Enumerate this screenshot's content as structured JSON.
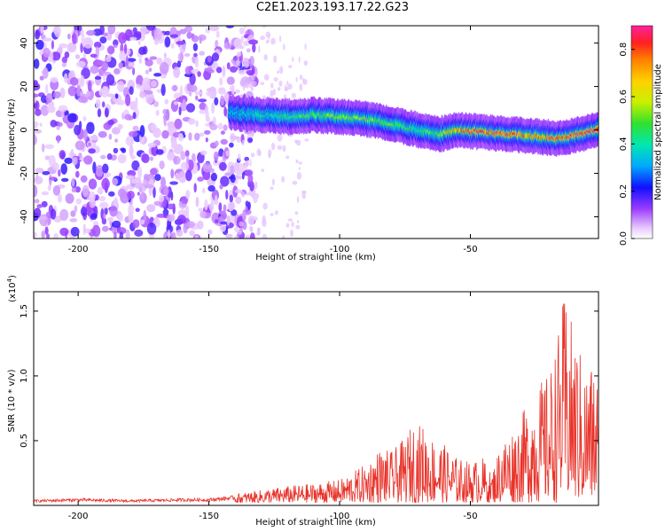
{
  "title": "C2E1.2023.193.17.22.G23",
  "chart_data": [
    {
      "type": "heatmap",
      "xlabel": "Height of straight line (km)",
      "ylabel": "Frequency (Hz)",
      "xlim": [
        -217,
        -1
      ],
      "ylim": [
        -50,
        48
      ],
      "xticks": [
        -200,
        -150,
        -100,
        -50
      ],
      "yticks": [
        -40,
        -20,
        0,
        20,
        40
      ],
      "colorbar": {
        "label": "Normalized spectral amplitude",
        "range": [
          0,
          0.9
        ],
        "ticks": [
          0.0,
          0.2,
          0.4,
          0.6,
          0.8
        ]
      },
      "noise_region_x": [
        -217,
        -140
      ],
      "ridge": {
        "x": [
          -142,
          -130,
          -120,
          -110,
          -100,
          -90,
          -80,
          -70,
          -62,
          -55,
          -45,
          -35,
          -25,
          -15,
          -5,
          -1
        ],
        "freq": [
          8,
          7,
          6,
          7,
          6,
          5,
          3,
          0,
          -2,
          0,
          -1,
          -2,
          -3,
          -4,
          -1,
          0
        ],
        "amplitude": [
          0.35,
          0.4,
          0.45,
          0.5,
          0.55,
          0.55,
          0.5,
          0.45,
          0.5,
          0.75,
          0.8,
          0.8,
          0.75,
          0.8,
          0.85,
          0.85
        ]
      }
    },
    {
      "type": "line",
      "xlabel": "Height of straight line (km)",
      "ylabel": "SNR (10 * v/v)",
      "yscale_label": "(x10",
      "yscale_exp": "4",
      "yscale_close": ")",
      "xlim": [
        -217,
        -1
      ],
      "ylim": [
        0,
        1.65
      ],
      "xticks": [
        -200,
        -150,
        -100,
        -50
      ],
      "yticks": [
        0.5,
        1.0,
        1.5
      ],
      "series": [
        {
          "color": "#e8332a",
          "envelope_x": [
            -217,
            -200,
            -180,
            -160,
            -150,
            -140,
            -130,
            -120,
            -110,
            -100,
            -90,
            -85,
            -80,
            -75,
            -72,
            -68,
            -65,
            -60,
            -55,
            -50,
            -45,
            -42,
            -38,
            -35,
            -30,
            -25,
            -20,
            -17,
            -14,
            -10,
            -6,
            -3,
            -1
          ],
          "envelope_y": [
            0.04,
            0.05,
            0.04,
            0.05,
            0.05,
            0.07,
            0.1,
            0.13,
            0.15,
            0.18,
            0.3,
            0.42,
            0.4,
            0.5,
            0.62,
            0.6,
            0.52,
            0.45,
            0.35,
            0.32,
            0.35,
            0.22,
            0.5,
            0.55,
            0.7,
            0.9,
            1.0,
            1.25,
            1.62,
            1.3,
            1.05,
            1.1,
            1.0
          ]
        }
      ]
    }
  ]
}
